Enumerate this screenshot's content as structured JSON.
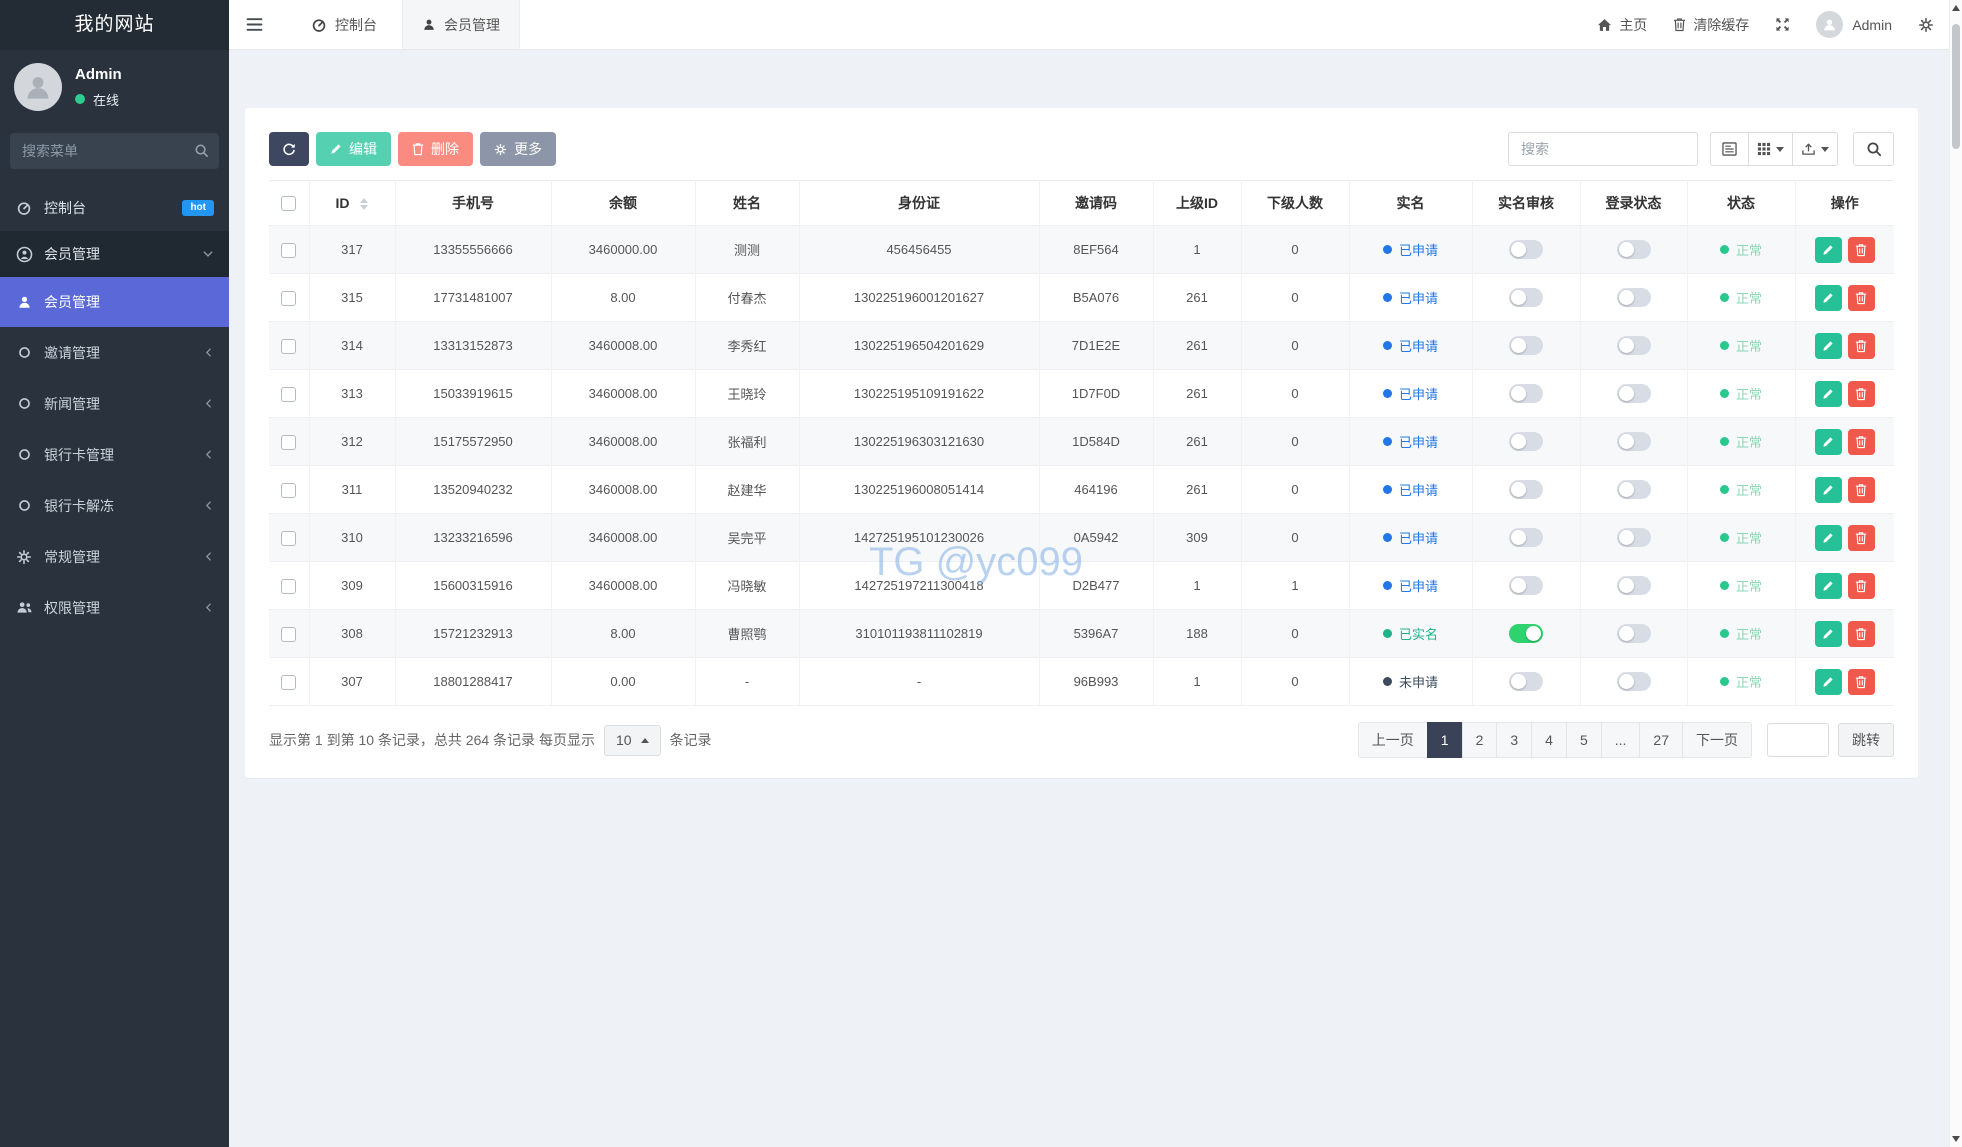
{
  "app": {
    "brand": "我的网站",
    "watermark": "TG @yc099"
  },
  "sidebar": {
    "user": {
      "name": "Admin",
      "status": "在线"
    },
    "search_placeholder": "搜索菜单",
    "menu": [
      {
        "label": "控制台",
        "badge": "hot"
      },
      {
        "label": "会员管理"
      },
      {
        "label": "会员管理"
      },
      {
        "label": "邀请管理"
      },
      {
        "label": "新闻管理"
      },
      {
        "label": "银行卡管理"
      },
      {
        "label": "银行卡解冻"
      },
      {
        "label": "常规管理"
      },
      {
        "label": "权限管理"
      }
    ]
  },
  "navbar": {
    "tabs": [
      {
        "label": "控制台"
      },
      {
        "label": "会员管理"
      }
    ],
    "home": "主页",
    "clear_cache": "清除缓存",
    "user": "Admin"
  },
  "toolbar": {
    "edit": "编辑",
    "delete": "删除",
    "more": "更多",
    "search_placeholder": "搜索"
  },
  "table": {
    "columns": [
      "ID",
      "手机号",
      "余额",
      "姓名",
      "身份证",
      "邀请码",
      "上级ID",
      "下级人数",
      "实名",
      "实名审核",
      "登录状态",
      "状态",
      "操作"
    ],
    "rows": [
      {
        "id": "317",
        "phone": "13355556666",
        "balance": "3460000.00",
        "name": "测测",
        "id_card": "456456455",
        "invite_code": "8EF564",
        "parent_id": "1",
        "subordinates": "0",
        "real_name": "applied",
        "audit": false,
        "login": false,
        "status": "normal"
      },
      {
        "id": "315",
        "phone": "17731481007",
        "balance": "8.00",
        "name": "付春杰",
        "id_card": "130225196001201627",
        "invite_code": "B5A076",
        "parent_id": "261",
        "subordinates": "0",
        "real_name": "applied",
        "audit": false,
        "login": false,
        "status": "normal"
      },
      {
        "id": "314",
        "phone": "13313152873",
        "balance": "3460008.00",
        "name": "李秀红",
        "id_card": "130225196504201629",
        "invite_code": "7D1E2E",
        "parent_id": "261",
        "subordinates": "0",
        "real_name": "applied",
        "audit": false,
        "login": false,
        "status": "normal"
      },
      {
        "id": "313",
        "phone": "15033919615",
        "balance": "3460008.00",
        "name": "王晓玲",
        "id_card": "130225195109191622",
        "invite_code": "1D7F0D",
        "parent_id": "261",
        "subordinates": "0",
        "real_name": "applied",
        "audit": false,
        "login": false,
        "status": "normal"
      },
      {
        "id": "312",
        "phone": "15175572950",
        "balance": "3460008.00",
        "name": "张福利",
        "id_card": "130225196303121630",
        "invite_code": "1D584D",
        "parent_id": "261",
        "subordinates": "0",
        "real_name": "applied",
        "audit": false,
        "login": false,
        "status": "normal"
      },
      {
        "id": "311",
        "phone": "13520940232",
        "balance": "3460008.00",
        "name": "赵建华",
        "id_card": "130225196008051414",
        "invite_code": "464196",
        "parent_id": "261",
        "subordinates": "0",
        "real_name": "applied",
        "audit": false,
        "login": false,
        "status": "normal"
      },
      {
        "id": "310",
        "phone": "13233216596",
        "balance": "3460008.00",
        "name": "吴完平",
        "id_card": "142725195101230026",
        "invite_code": "0A5942",
        "parent_id": "309",
        "subordinates": "0",
        "real_name": "applied",
        "audit": false,
        "login": false,
        "status": "normal"
      },
      {
        "id": "309",
        "phone": "15600315916",
        "balance": "3460008.00",
        "name": "冯晓敏",
        "id_card": "142725197211300418",
        "invite_code": "D2B477",
        "parent_id": "1",
        "subordinates": "1",
        "real_name": "applied",
        "audit": false,
        "login": false,
        "status": "normal"
      },
      {
        "id": "308",
        "phone": "15721232913",
        "balance": "8.00",
        "name": "曹照鹗",
        "id_card": "310101193811102819",
        "invite_code": "5396A7",
        "parent_id": "188",
        "subordinates": "0",
        "real_name": "verified",
        "audit": true,
        "login": false,
        "status": "normal"
      },
      {
        "id": "307",
        "phone": "18801288417",
        "balance": "0.00",
        "name": "-",
        "id_card": "-",
        "invite_code": "96B993",
        "parent_id": "1",
        "subordinates": "0",
        "real_name": "none",
        "audit": false,
        "login": false,
        "status": "normal"
      }
    ]
  },
  "status_labels": {
    "applied": "已申请",
    "verified": "已实名",
    "none": "未申请",
    "normal": "正常"
  },
  "footer": {
    "summary_prefix": "显示第 1 到第 10 条记录，总共 264 条记录 每页显示",
    "page_size": "10",
    "summary_suffix": "条记录",
    "pagination": {
      "prev": "上一页",
      "pages": [
        "1",
        "2",
        "3",
        "4",
        "5",
        "...",
        "27"
      ],
      "active": "1",
      "next": "下一页",
      "jump_label": "跳转"
    }
  },
  "icons": {
    "hamburger": "☰",
    "search": "🔍",
    "refresh": "⟳",
    "edit": "✎",
    "delete": "🗑",
    "more": "⚙",
    "home": "⌂",
    "fullscreen": "✥",
    "settings": "⚙",
    "sort": "⇅",
    "caret_down": "▼",
    "caret_up": "▲",
    "chevron_left": "‹",
    "chevron_down": "⌄",
    "circle": "○"
  },
  "colors": {
    "sidebar_bg": "#29323d",
    "sidebar_active": "#5a68d8",
    "badge_hot": "#2196f3",
    "online_dot": "#2ecc8f",
    "applied": "#2176e8",
    "verified": "#1fb38b",
    "none": "#3c4c5c",
    "status_dot": "#2bc68b",
    "toggle_on": "#2ed36f",
    "refresh_btn": "#3e4760",
    "edit_btn": "#55d1b1",
    "delete_btn": "#f98b80",
    "more_btn": "#8d96a8",
    "op_edit": "#26c196",
    "op_delete": "#f1584c",
    "pagination_active": "#3a4257"
  }
}
